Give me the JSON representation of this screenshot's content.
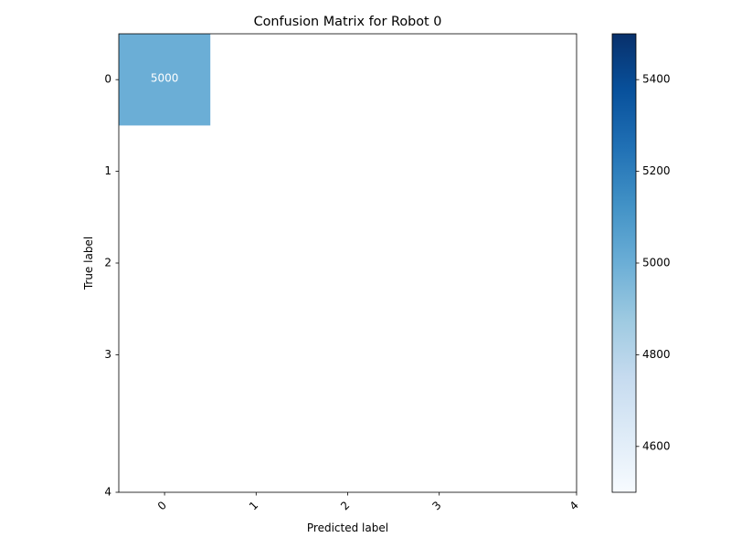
{
  "chart_data": {
    "type": "heatmap",
    "title": "Confusion Matrix for Robot 0",
    "xlabel": "Predicted label",
    "ylabel": "True label",
    "x_ticks": [
      "0",
      "1",
      "2",
      "3",
      "4"
    ],
    "y_ticks": [
      "0",
      "1",
      "2",
      "3",
      "4"
    ],
    "cells": [
      {
        "row": 0,
        "col": 0,
        "value": 5000,
        "label": "5000"
      }
    ],
    "colormap": "Blues",
    "colorbar": {
      "range": [
        4500,
        5500
      ],
      "ticks": [
        4600,
        4800,
        5000,
        5200,
        5400
      ],
      "tick_labels": [
        "4600",
        "4800",
        "5000",
        "5200",
        "5400"
      ]
    },
    "cell_text_color": "#ffffff",
    "grid": false
  }
}
